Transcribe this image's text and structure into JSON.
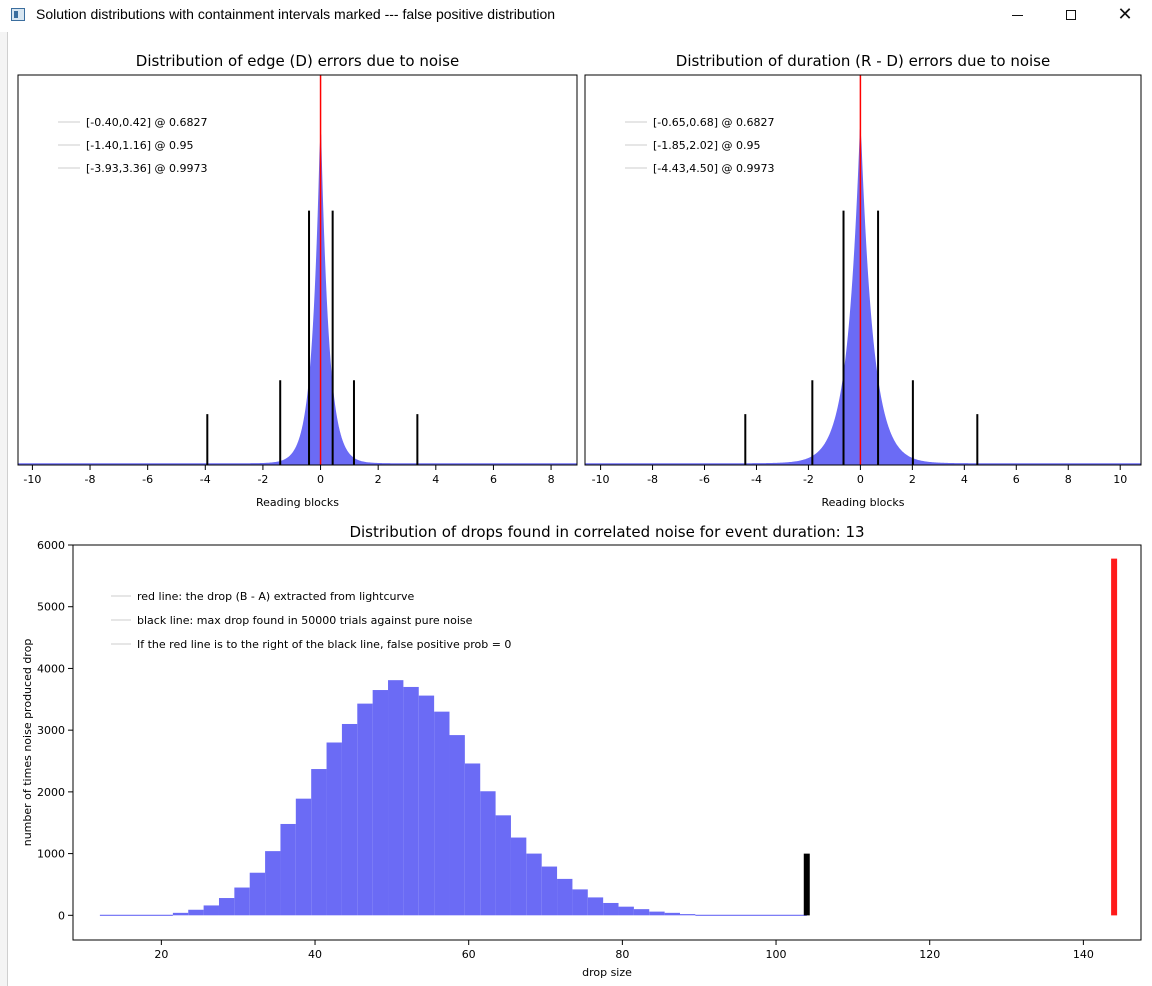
{
  "window": {
    "title": "Solution distributions with containment intervals marked --- false positive distribution",
    "minimize_label": "",
    "close_label": "✕"
  },
  "chart_data": [
    {
      "id": "edge",
      "type": "histogram",
      "title": "Distribution of edge (D) errors due to noise",
      "xlabel": "Reading blocks",
      "ylabel": "",
      "xlim": [
        -10.5,
        8.9
      ],
      "ylim": [
        0,
        1.15
      ],
      "xticks": [
        -10,
        -8,
        -6,
        -4,
        -2,
        0,
        2,
        4,
        6,
        8
      ],
      "yticks": [],
      "distribution": {
        "kind": "laplace",
        "center": 0.0,
        "peak": 1.0,
        "scale": 0.28,
        "baseline": 0.004
      },
      "red_line": {
        "x": 0,
        "height": 1.15
      },
      "black_lines": [
        {
          "x": -0.4,
          "height": 0.75
        },
        {
          "x": 0.42,
          "height": 0.75
        },
        {
          "x": -1.4,
          "height": 0.25
        },
        {
          "x": 1.16,
          "height": 0.25
        },
        {
          "x": -3.93,
          "height": 0.15
        },
        {
          "x": 3.36,
          "height": 0.15
        }
      ],
      "legend": [
        "[-0.40,0.42] @ 0.6827",
        "[-1.40,1.16] @ 0.95",
        "[-3.93,3.36] @ 0.9973"
      ]
    },
    {
      "id": "duration",
      "type": "histogram",
      "title": "Distribution of duration (R - D) errors due to noise",
      "xlabel": "Reading blocks",
      "ylabel": "",
      "xlim": [
        -10.6,
        10.8
      ],
      "ylim": [
        0,
        1.15
      ],
      "xticks": [
        -10,
        -8,
        -6,
        -4,
        -2,
        0,
        2,
        4,
        6,
        8,
        10
      ],
      "yticks": [],
      "distribution": {
        "kind": "laplace",
        "center": 0.0,
        "peak": 1.0,
        "scale": 0.48,
        "baseline": 0.004
      },
      "red_line": {
        "x": 0,
        "height": 1.15
      },
      "black_lines": [
        {
          "x": -0.65,
          "height": 0.75
        },
        {
          "x": 0.68,
          "height": 0.75
        },
        {
          "x": -1.85,
          "height": 0.25
        },
        {
          "x": 2.02,
          "height": 0.25
        },
        {
          "x": -4.43,
          "height": 0.15
        },
        {
          "x": 4.5,
          "height": 0.15
        }
      ],
      "legend": [
        "[-0.65,0.68] @ 0.6827",
        "[-1.85,2.02] @ 0.95",
        "[-4.43,4.50] @ 0.9973"
      ]
    },
    {
      "id": "drops",
      "type": "bar",
      "title": "Distribution of drops found in correlated noise for event duration: 13",
      "xlabel": "drop size",
      "ylabel": "number of times noise produced drop",
      "xlim": [
        8.5,
        147.5
      ],
      "ylim": [
        -400,
        6000
      ],
      "xticks": [
        20,
        40,
        60,
        80,
        100,
        120,
        140
      ],
      "yticks": [
        0,
        1000,
        2000,
        3000,
        4000,
        5000,
        6000
      ],
      "bins": {
        "start": 21.5,
        "width": 2,
        "counts": [
          40,
          90,
          160,
          280,
          450,
          690,
          1040,
          1480,
          1890,
          2370,
          2800,
          3100,
          3430,
          3650,
          3810,
          3700,
          3560,
          3300,
          2920,
          2460,
          2010,
          1620,
          1260,
          1000,
          790,
          590,
          420,
          290,
          200,
          140,
          100,
          60,
          40,
          20
        ]
      },
      "red_line": {
        "x": 144,
        "height": 5780
      },
      "black_line": {
        "x": 104,
        "height": 1000
      },
      "legend": [
        "red line: the drop (B - A) extracted from lightcurve",
        "black line: max drop found in 50000 trials against pure noise",
        "If the red line is to the right of the black line, false positive prob = 0"
      ]
    }
  ]
}
